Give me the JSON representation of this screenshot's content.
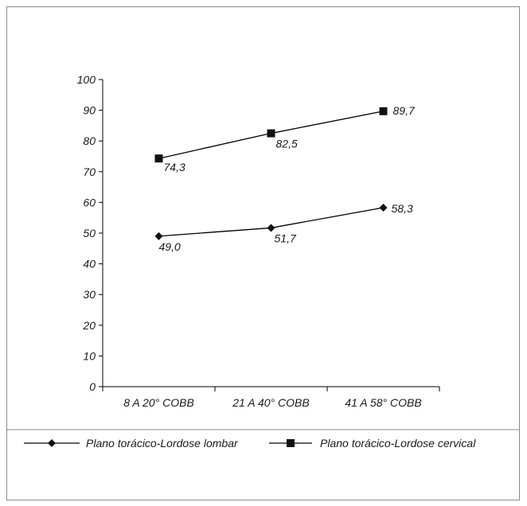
{
  "chart_data": {
    "type": "line",
    "categories": [
      "8 A 20° COBB",
      "21 A 40° COBB",
      "41 A 58° COBB"
    ],
    "ylim": [
      0,
      100
    ],
    "yticks": [
      0,
      10,
      20,
      30,
      40,
      50,
      60,
      70,
      80,
      90,
      100
    ],
    "ytick_labels": [
      "0",
      "10",
      "20",
      "30",
      "40",
      "50",
      "60",
      "70",
      "80",
      "90",
      "100"
    ],
    "series": [
      {
        "name": "Plano torácico-Lordose lombar",
        "marker": "diamond",
        "values": [
          49.0,
          51.7,
          58.3
        ],
        "labels": [
          "49,0",
          "51,7",
          "58,3"
        ]
      },
      {
        "name": "Plano torácico-Lordose cervical",
        "marker": "square",
        "values": [
          74.3,
          82.5,
          89.7
        ],
        "labels": [
          "74,3",
          "82,5",
          "89,7"
        ]
      }
    ],
    "legend_position": "bottom",
    "grid": false,
    "colors": {
      "line": "#000000",
      "text": "#1a1a1a",
      "frame": "#8a8a8a"
    }
  }
}
